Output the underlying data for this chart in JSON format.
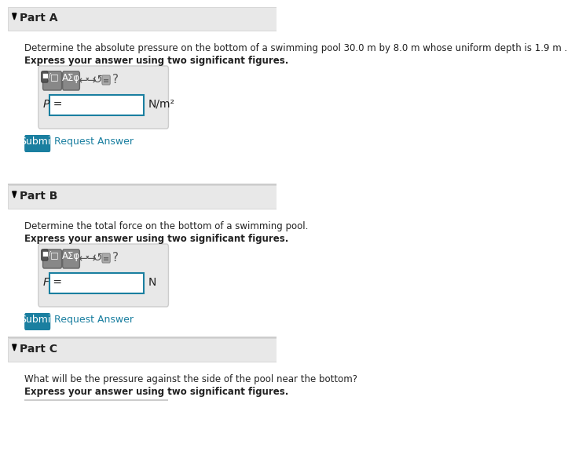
{
  "bg_color": "#f0f0f0",
  "white": "#ffffff",
  "teal": "#1a7fa0",
  "light_gray": "#e8e8e8",
  "mid_gray": "#cccccc",
  "dark_gray": "#555555",
  "text_color": "#222222",
  "link_color": "#1a7fa0",
  "part_a_header": "Part A",
  "part_b_header": "Part B",
  "part_c_header": "Part C",
  "part_a_desc1": "Determine the absolute pressure on the bottom of a swimming pool 30.0 m by 8.0 m whose uniform depth is 1.9 m .",
  "part_a_desc2": "Express your answer using two significant figures.",
  "part_b_desc1": "Determine the total force on the bottom of a swimming pool.",
  "part_b_desc2": "Express your answer using two significant figures.",
  "part_c_desc1": "What will be the pressure against the side of the pool near the bottom?",
  "part_c_desc2": "Express your answer using two significant figures.",
  "p_label": "P =",
  "f_label": "F =",
  "p_unit": "N/m²",
  "f_unit": "N",
  "submit_text": "Submit",
  "request_text": "Request Answer"
}
